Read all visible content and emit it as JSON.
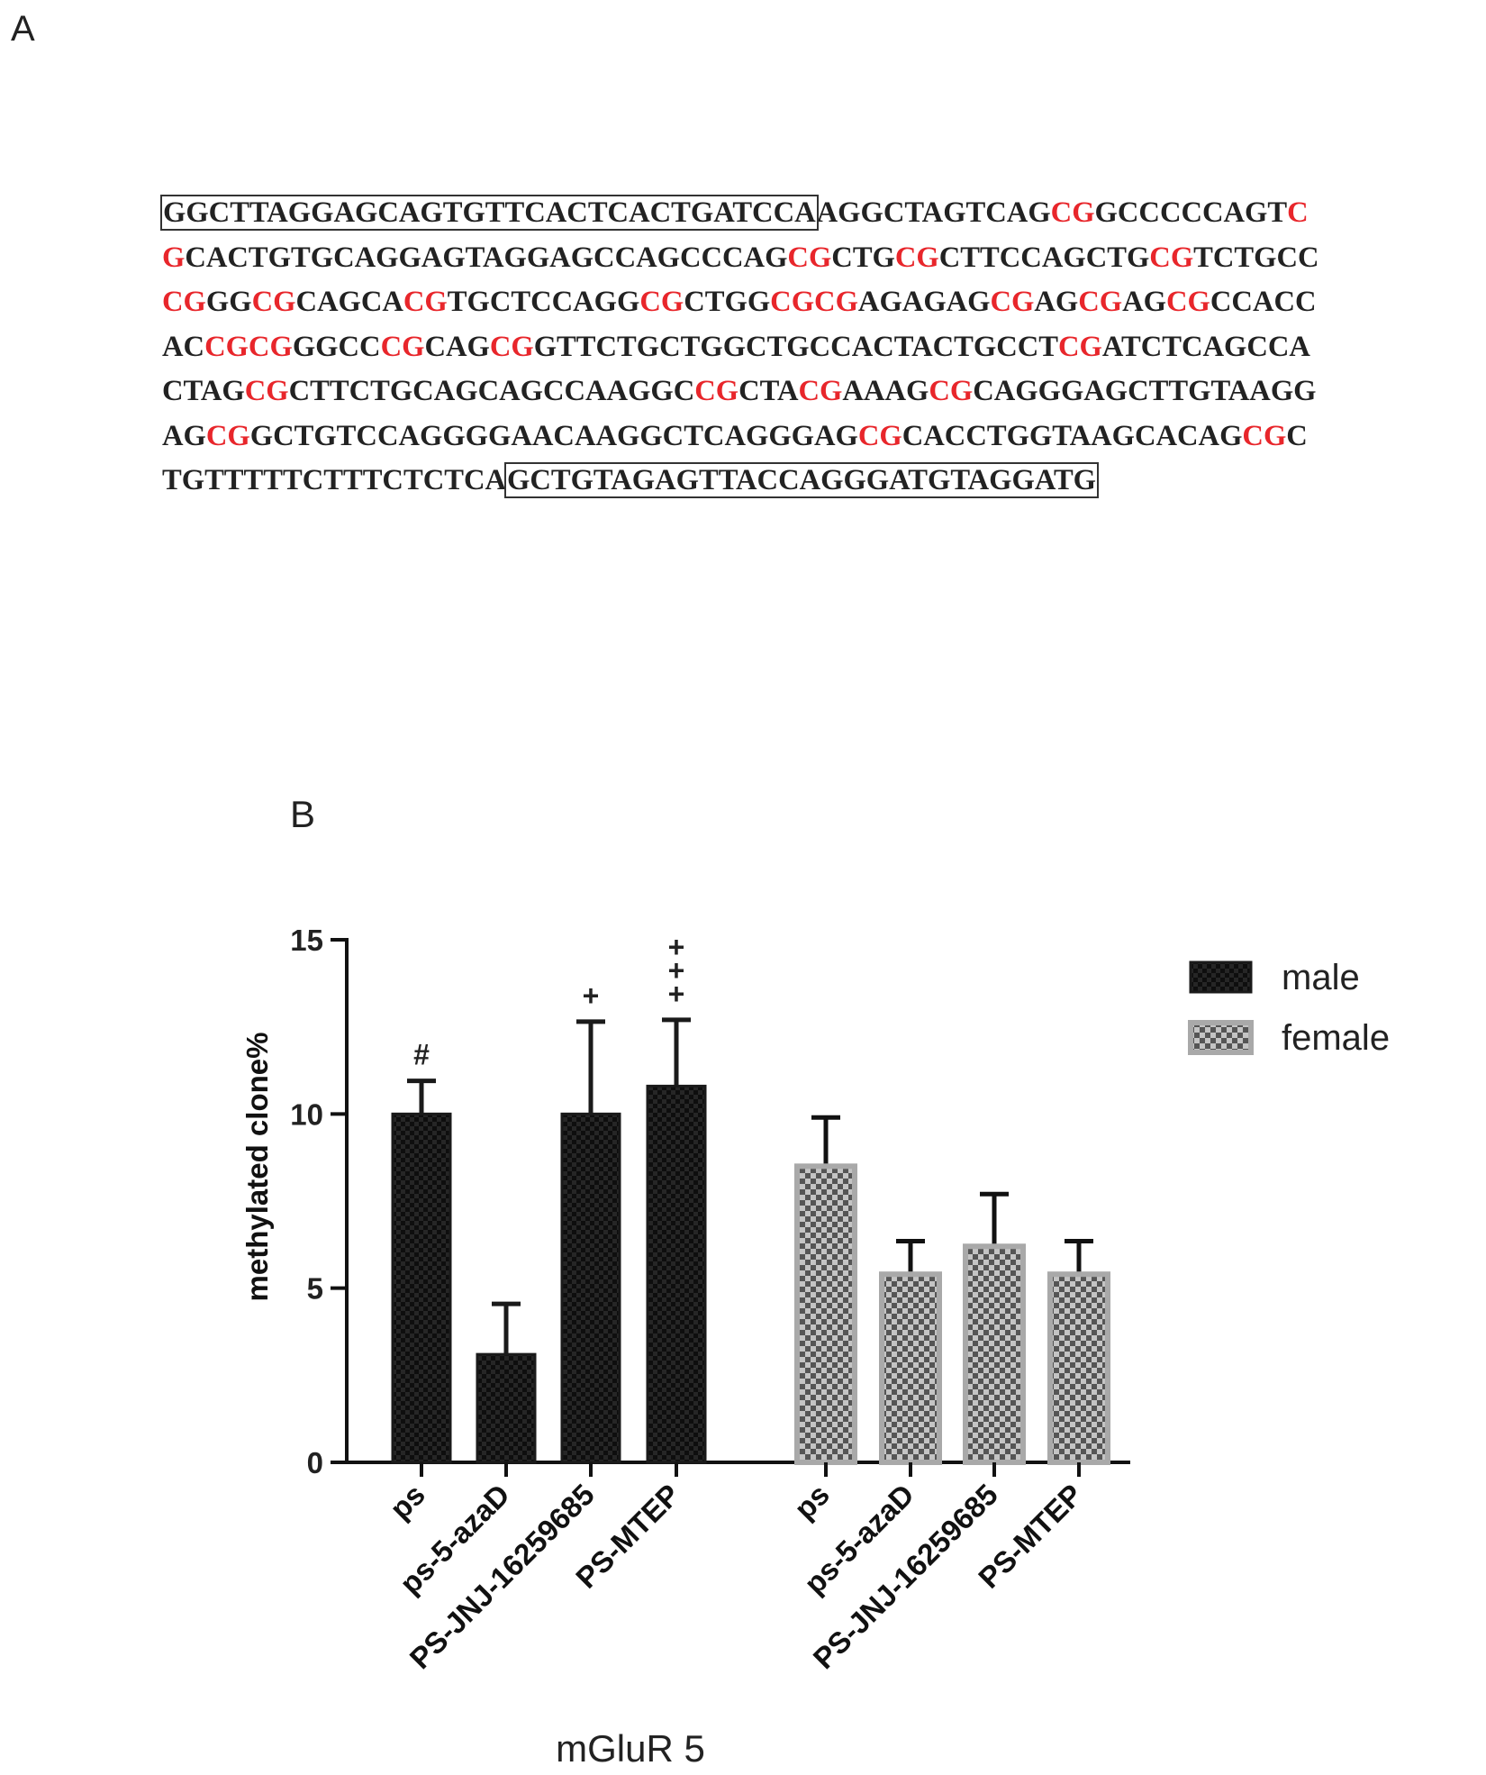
{
  "panel_a": {
    "label": "A",
    "sequence_lines": [
      [
        {
          "t": "GGCTTAGGAGCAGTGTTCACTCACTGATCCA",
          "box": true
        },
        {
          "t": "AGGCTAGTCAG"
        },
        {
          "t": "CG",
          "cg": true
        },
        {
          "t": "GCCCCCAGT"
        },
        {
          "t": "C",
          "cg": true
        }
      ],
      [
        {
          "t": "G",
          "cg": true
        },
        {
          "t": "CACTGTGCAGGAGTAGGAGCCAGCCCAG"
        },
        {
          "t": "CG",
          "cg": true
        },
        {
          "t": "CTG"
        },
        {
          "t": "CG",
          "cg": true
        },
        {
          "t": "CTTCCAGCTG"
        },
        {
          "t": "CG",
          "cg": true
        },
        {
          "t": "TCTGCC"
        }
      ],
      [
        {
          "t": "CG",
          "cg": true
        },
        {
          "t": "GG"
        },
        {
          "t": "CG",
          "cg": true
        },
        {
          "t": "CAGCA"
        },
        {
          "t": "CG",
          "cg": true
        },
        {
          "t": "TGCTCCAGG"
        },
        {
          "t": "CG",
          "cg": true
        },
        {
          "t": "CTGG"
        },
        {
          "t": "CGCG",
          "cg": true
        },
        {
          "t": "AGAGAG"
        },
        {
          "t": "CG",
          "cg": true
        },
        {
          "t": "AG"
        },
        {
          "t": "CG",
          "cg": true
        },
        {
          "t": "AG"
        },
        {
          "t": "CG",
          "cg": true
        },
        {
          "t": "CCACC"
        }
      ],
      [
        {
          "t": "AC"
        },
        {
          "t": "CGCG",
          "cg": true
        },
        {
          "t": "GGCC"
        },
        {
          "t": "CG",
          "cg": true
        },
        {
          "t": "CAG"
        },
        {
          "t": "CG",
          "cg": true
        },
        {
          "t": "GTTCTGCTGGCTGCCACTACTGCCT"
        },
        {
          "t": "CG",
          "cg": true
        },
        {
          "t": "ATCTCAGCCA"
        }
      ],
      [
        {
          "t": "CTAG"
        },
        {
          "t": "CG",
          "cg": true
        },
        {
          "t": "CTTCTGCAGCAGCCAAGGC"
        },
        {
          "t": "CG",
          "cg": true
        },
        {
          "t": "CTA"
        },
        {
          "t": "CG",
          "cg": true
        },
        {
          "t": "AAAG"
        },
        {
          "t": "CG",
          "cg": true
        },
        {
          "t": "CAGGGAGCTTGTAAGG"
        }
      ],
      [
        {
          "t": "AG"
        },
        {
          "t": "CG",
          "cg": true
        },
        {
          "t": "GCTGTCCAGGGGAACAAGGCTCAGGGAG"
        },
        {
          "t": "CG",
          "cg": true
        },
        {
          "t": "CACCTGGTAAGCACAG"
        },
        {
          "t": "CG",
          "cg": true
        },
        {
          "t": "C"
        }
      ],
      [
        {
          "t": "TGTTTTTCTTTCTCTCA"
        },
        {
          "t": "GCTGTAGAGTTACCAGGGATGTAGGATG",
          "box": true
        }
      ]
    ]
  },
  "panel_b": {
    "label": "B",
    "xaxis_title": "mGluR 5",
    "colors": {
      "male": "#1a1a1a",
      "female": "#a9a9a9",
      "annotation": "#222222"
    }
  },
  "chart_data": {
    "type": "bar",
    "ylabel": "methylated clone%",
    "xlabel": "mGluR 5",
    "ylim": [
      0,
      15
    ],
    "yticks": [
      0,
      5,
      10,
      15
    ],
    "legend": {
      "position": "top-right",
      "entries": [
        "male",
        "female"
      ]
    },
    "groups": [
      {
        "name": "male",
        "categories": [
          "ps",
          "ps-5-azaD",
          "PS-JNJ-16259685",
          "PS-MTEP"
        ],
        "values": [
          10.0,
          3.1,
          10.0,
          10.8
        ],
        "errors": [
          0.95,
          1.45,
          2.65,
          1.9
        ],
        "annotations": [
          "#",
          "",
          "+",
          "+\n+\n+"
        ]
      },
      {
        "name": "female",
        "categories": [
          "ps",
          "ps-5-azaD",
          "PS-JNJ-16259685",
          "PS-MTEP"
        ],
        "values": [
          8.5,
          5.4,
          6.2,
          5.4
        ],
        "errors": [
          1.4,
          0.95,
          1.5,
          0.95
        ],
        "annotations": [
          "",
          "",
          "",
          ""
        ]
      }
    ]
  }
}
